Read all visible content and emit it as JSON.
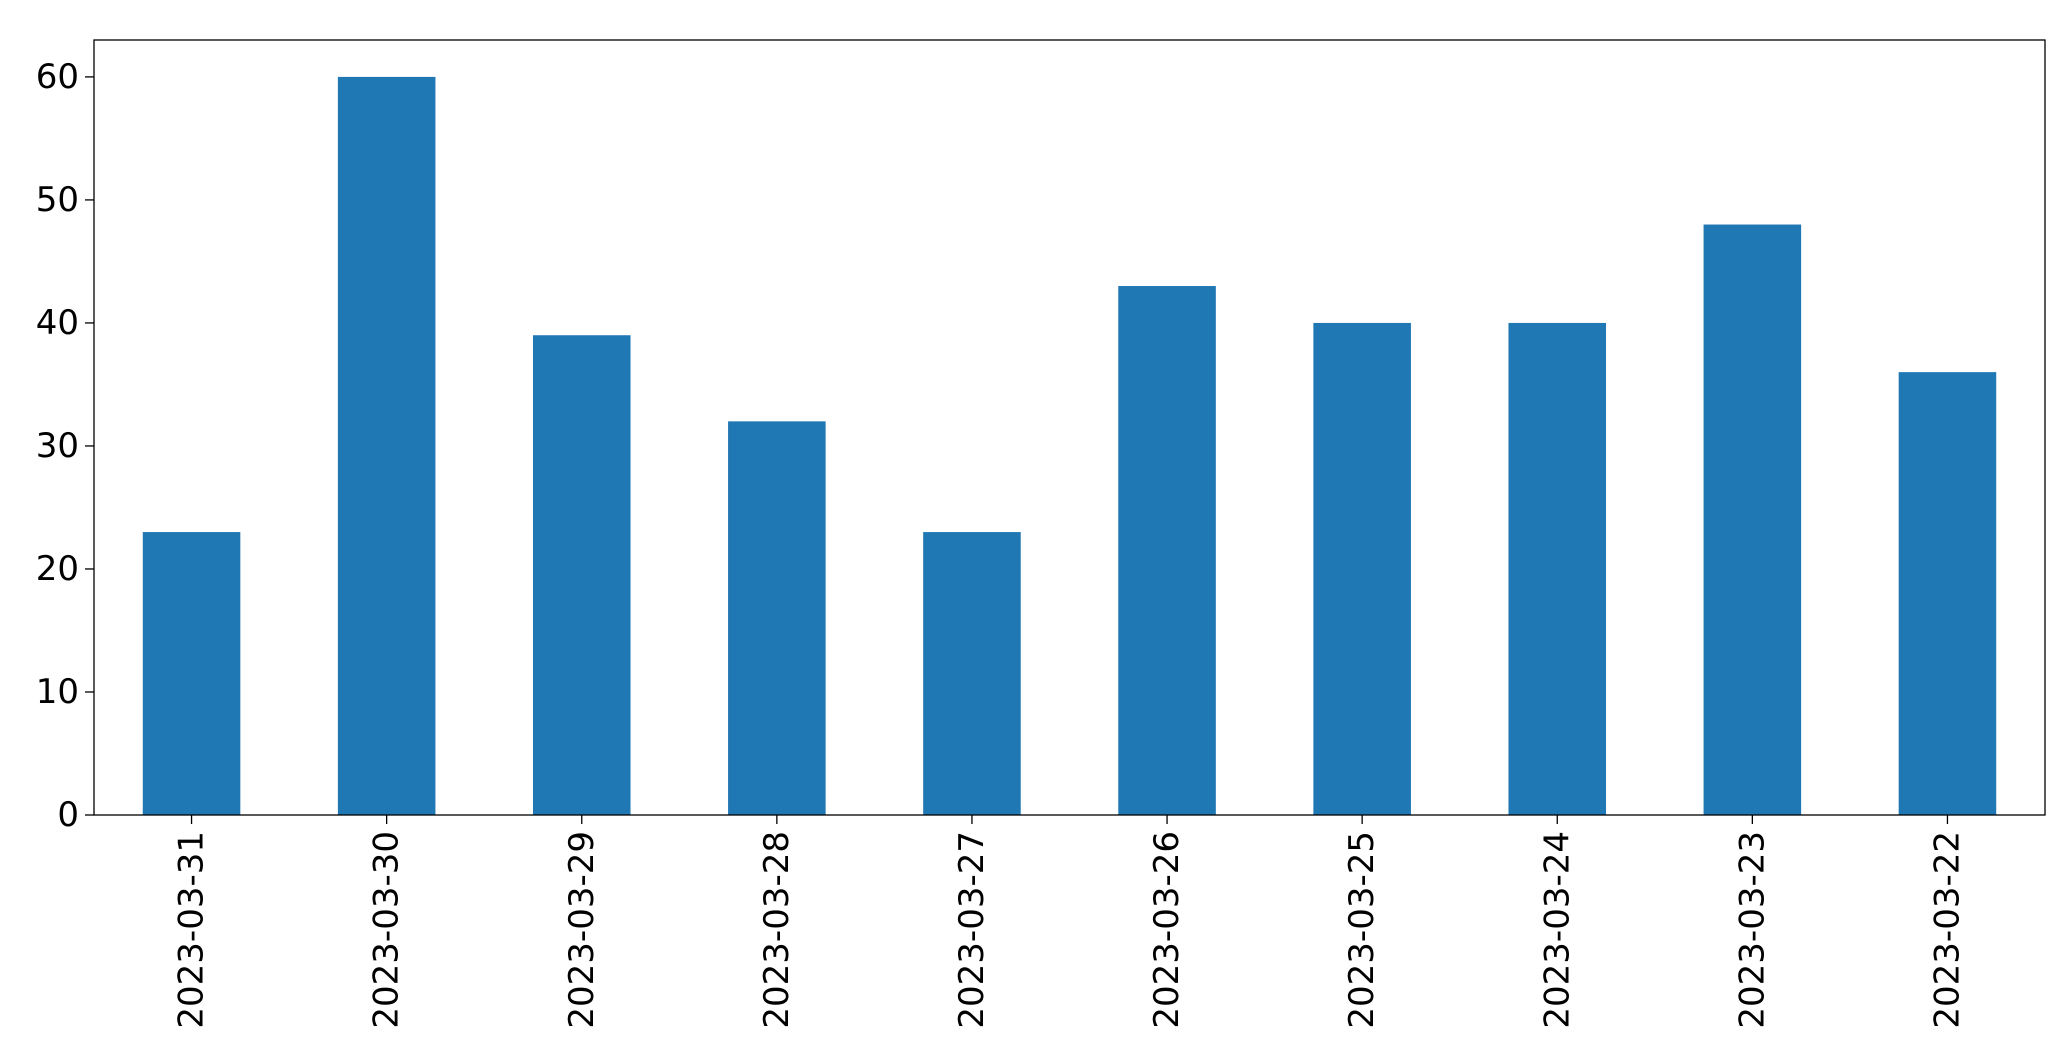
{
  "chart_data": {
    "type": "bar",
    "title": "",
    "xlabel": "",
    "ylabel": "",
    "categories": [
      "2023-03-31",
      "2023-03-30",
      "2023-03-29",
      "2023-03-28",
      "2023-03-27",
      "2023-03-26",
      "2023-03-25",
      "2023-03-24",
      "2023-03-23",
      "2023-03-22"
    ],
    "values": [
      23,
      60,
      39,
      32,
      23,
      43,
      40,
      40,
      48,
      36
    ],
    "ylim": [
      0,
      63
    ],
    "yticks": [
      0,
      10,
      20,
      30,
      40,
      50,
      60
    ],
    "grid": false,
    "legend": "none",
    "bar_color": "#1f77b4"
  }
}
